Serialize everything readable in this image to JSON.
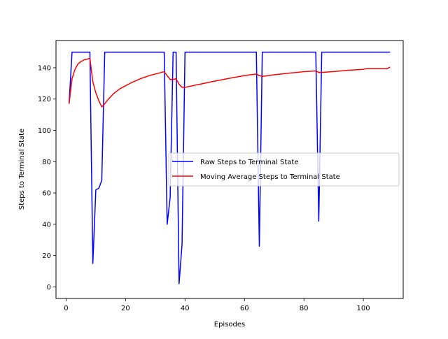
{
  "chart_data": {
    "type": "line",
    "title": "",
    "xlabel": "Episodes",
    "ylabel": "Steps to Terminal State",
    "xlim": [
      -3.4,
      113.4
    ],
    "ylim": [
      -7.4,
      157.4
    ],
    "xticks": [
      0,
      20,
      40,
      60,
      80,
      100
    ],
    "yticks": [
      0,
      20,
      40,
      60,
      80,
      100,
      120,
      140
    ],
    "grid": false,
    "legend_position": "center-right",
    "series": [
      {
        "name": "Raw Steps to Terminal State",
        "color": "#0000ff",
        "x": [
          1,
          2,
          3,
          4,
          5,
          6,
          7,
          8,
          9,
          10,
          11,
          12,
          13,
          14,
          15,
          16,
          17,
          18,
          19,
          20,
          21,
          22,
          23,
          24,
          25,
          26,
          27,
          28,
          29,
          30,
          31,
          32,
          33,
          34,
          35,
          36,
          37,
          38,
          39,
          40,
          41,
          42,
          43,
          44,
          45,
          46,
          47,
          48,
          49,
          50,
          51,
          52,
          53,
          54,
          55,
          56,
          57,
          58,
          59,
          60,
          61,
          62,
          63,
          64,
          65,
          66,
          67,
          68,
          69,
          70,
          71,
          72,
          73,
          74,
          75,
          76,
          77,
          78,
          79,
          80,
          81,
          82,
          83,
          84,
          85,
          86,
          87,
          88,
          89,
          90,
          91,
          92,
          93,
          94,
          95,
          96,
          97,
          98,
          99,
          100,
          101,
          102,
          103,
          104,
          105,
          106,
          107,
          108,
          109
        ],
        "y": [
          117,
          150,
          150,
          150,
          150,
          150,
          150,
          150,
          15,
          62,
          63,
          68,
          150,
          150,
          150,
          150,
          150,
          150,
          150,
          150,
          150,
          150,
          150,
          150,
          150,
          150,
          150,
          150,
          150,
          150,
          150,
          150,
          150,
          40,
          57,
          150,
          150,
          2,
          27,
          150,
          150,
          150,
          150,
          150,
          150,
          150,
          150,
          150,
          150,
          150,
          150,
          150,
          150,
          150,
          150,
          150,
          150,
          150,
          150,
          150,
          150,
          150,
          150,
          150,
          26,
          150,
          150,
          150,
          150,
          150,
          150,
          150,
          150,
          150,
          150,
          150,
          150,
          150,
          150,
          150,
          150,
          150,
          150,
          150,
          42,
          150,
          150,
          150,
          150,
          150,
          150,
          150,
          150,
          150,
          150,
          150,
          150,
          150,
          150,
          150,
          150,
          150,
          150,
          150,
          150,
          150,
          150,
          150,
          150
        ]
      },
      {
        "name": "Moving Average Steps to Terminal State",
        "color": "#ff0000",
        "x": [
          1,
          2,
          3,
          4,
          5,
          6,
          7,
          8,
          9,
          10,
          11,
          12,
          13,
          14,
          15,
          16,
          17,
          18,
          19,
          20,
          22,
          25,
          28,
          30,
          33,
          34,
          35,
          36,
          37,
          38,
          39,
          40,
          45,
          50,
          55,
          60,
          64,
          65,
          66,
          70,
          75,
          80,
          84,
          85,
          86,
          90,
          95,
          100,
          101,
          105,
          108,
          109
        ],
        "y": [
          117,
          133,
          139,
          142.5,
          144,
          145,
          145.5,
          146,
          131,
          124,
          119,
          115,
          117,
          119.5,
          121.5,
          123.5,
          125,
          126.5,
          127.5,
          128.5,
          130.5,
          133,
          135,
          136,
          137.5,
          135,
          132.5,
          132.5,
          133,
          129.5,
          127.5,
          127.5,
          129.5,
          131.5,
          133.3,
          135,
          136,
          135,
          134.5,
          135.5,
          136.6,
          137.5,
          138,
          137,
          137,
          137.6,
          138.4,
          139,
          139.4,
          139.4,
          139.4,
          140.5
        ]
      }
    ]
  }
}
